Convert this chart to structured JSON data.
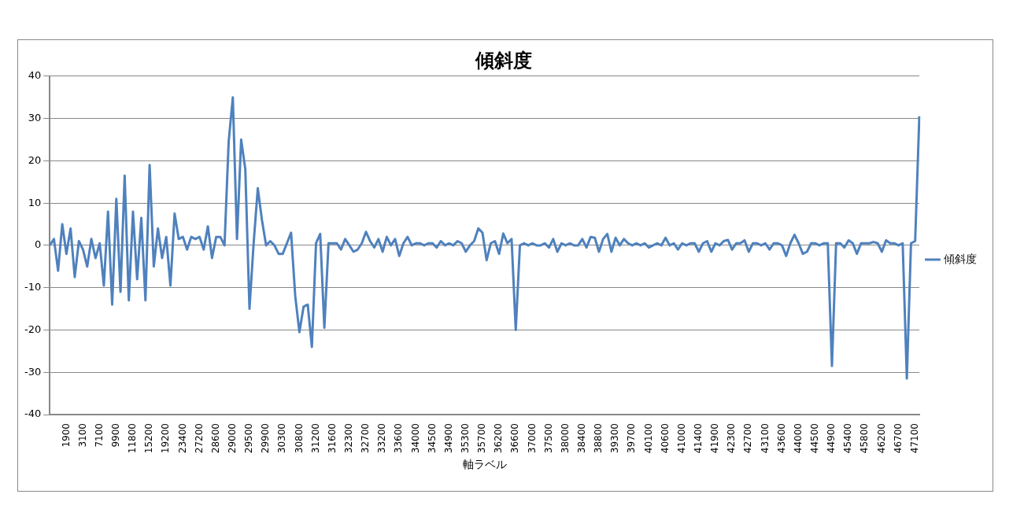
{
  "chart_data": {
    "type": "line",
    "title": "傾斜度",
    "xlabel": "軸ラベル",
    "categories": [
      null,
      null,
      null,
      null,
      "1900",
      null,
      null,
      null,
      "3100",
      null,
      null,
      null,
      "7100",
      null,
      null,
      null,
      "9900",
      null,
      null,
      null,
      "11800",
      null,
      null,
      null,
      "15200",
      null,
      null,
      null,
      "19200",
      null,
      null,
      null,
      "23400",
      null,
      null,
      null,
      "27200",
      null,
      null,
      null,
      "28600",
      null,
      null,
      null,
      "29000",
      null,
      null,
      null,
      "29500",
      null,
      null,
      null,
      "29900",
      null,
      null,
      null,
      "30300",
      null,
      null,
      null,
      "30800",
      null,
      null,
      null,
      "31200",
      null,
      null,
      null,
      "31600",
      null,
      null,
      null,
      "32300",
      null,
      null,
      null,
      "32700",
      null,
      null,
      null,
      "33200",
      null,
      null,
      null,
      "33600",
      null,
      null,
      null,
      "34000",
      null,
      null,
      null,
      "34500",
      null,
      null,
      null,
      "34900",
      null,
      null,
      null,
      "35300",
      null,
      null,
      null,
      "35700",
      null,
      null,
      null,
      "36200",
      null,
      null,
      null,
      "36600",
      null,
      null,
      null,
      "37000",
      null,
      null,
      null,
      "37500",
      null,
      null,
      null,
      "38000",
      null,
      null,
      null,
      "38400",
      null,
      null,
      null,
      "38800",
      null,
      null,
      null,
      "39300",
      null,
      null,
      null,
      "39700",
      null,
      null,
      null,
      "40100",
      null,
      null,
      null,
      "40600",
      null,
      null,
      null,
      "41000",
      null,
      null,
      null,
      "41400",
      null,
      null,
      null,
      "41900",
      null,
      null,
      null,
      "42300",
      null,
      null,
      null,
      "42700",
      null,
      null,
      null,
      "43100",
      null,
      null,
      null,
      "43600",
      null,
      null,
      null,
      "44000",
      null,
      null,
      null,
      "44500",
      null,
      null,
      null,
      "44900",
      null,
      null,
      null,
      "45400",
      null,
      null,
      null,
      "45800",
      null,
      null,
      null,
      "46200",
      null,
      null,
      null,
      "46700",
      null,
      null,
      null,
      "47100",
      null
    ],
    "series": [
      {
        "name": "傾斜度",
        "color": "#4f81bd",
        "values": [
          0,
          1.5,
          -6,
          5,
          -2,
          4,
          -7.5,
          1,
          -1,
          -5,
          1.5,
          -3,
          0.5,
          -9.5,
          8,
          -14,
          11,
          -11,
          16.5,
          -13,
          8,
          -8,
          6.5,
          -13,
          19,
          -5,
          4,
          -3,
          2,
          -9.5,
          7.5,
          1.5,
          2,
          -1,
          2,
          1.5,
          2,
          -1,
          4.5,
          -3,
          2,
          2,
          0,
          24.5,
          35,
          1.5,
          25,
          18,
          -15,
          0.5,
          13.5,
          6,
          0,
          1,
          0,
          -2,
          -2,
          0.5,
          3,
          -12,
          -20.5,
          -14.5,
          -14,
          -24,
          0.5,
          2.7,
          -19.5,
          0.5,
          0.5,
          0.5,
          -1,
          1.5,
          0,
          -1.5,
          -1,
          0.5,
          3.2,
          1,
          -0.5,
          1.5,
          -1.5,
          2,
          0,
          1.5,
          -2.5,
          0.5,
          2,
          0,
          0.5,
          0.5,
          0,
          0.5,
          0.5,
          -0.5,
          1,
          0,
          0.5,
          0,
          1,
          0.5,
          -1.5,
          0,
          1,
          4,
          3,
          -3.5,
          0.5,
          1,
          -2,
          2.8,
          0.5,
          1.5,
          -20,
          0,
          0.5,
          0,
          0.5,
          0,
          0,
          0.5,
          -0.5,
          1.5,
          -1.5,
          0.5,
          0,
          0.5,
          0,
          0,
          1.5,
          -0.5,
          2,
          1.8,
          -1.5,
          1.5,
          2.7,
          -1.5,
          1.8,
          0,
          1.5,
          0.5,
          0,
          0.5,
          0,
          0.5,
          -0.5,
          0,
          0.5,
          0,
          1.8,
          0,
          0.5,
          -1,
          0.5,
          0,
          0.5,
          0.5,
          -1.5,
          0.5,
          1,
          -1.5,
          0.5,
          0,
          1,
          1.3,
          -1,
          0.5,
          0.5,
          1.2,
          -1.5,
          0.5,
          0.5,
          0,
          0.5,
          -1,
          0.5,
          0.5,
          0,
          -2.5,
          0.5,
          2.5,
          0.5,
          -2,
          -1.5,
          0.5,
          0.5,
          0,
          0.5,
          0.5,
          -28.5,
          0.5,
          0.5,
          -0.5,
          1.2,
          0.5,
          -2,
          0.5,
          0.5,
          0.5,
          0.8,
          0.5,
          -1.5,
          1.2,
          0.5,
          0.5,
          0,
          0.5,
          -31.5,
          0.5,
          1,
          30.5
        ]
      }
    ],
    "ylim": [
      -40,
      40
    ],
    "yticks": [
      -40,
      -30,
      -20,
      -10,
      0,
      10,
      20,
      30,
      40
    ],
    "grid": "y",
    "legend": "right",
    "marker": "none",
    "line_style": "solid"
  }
}
